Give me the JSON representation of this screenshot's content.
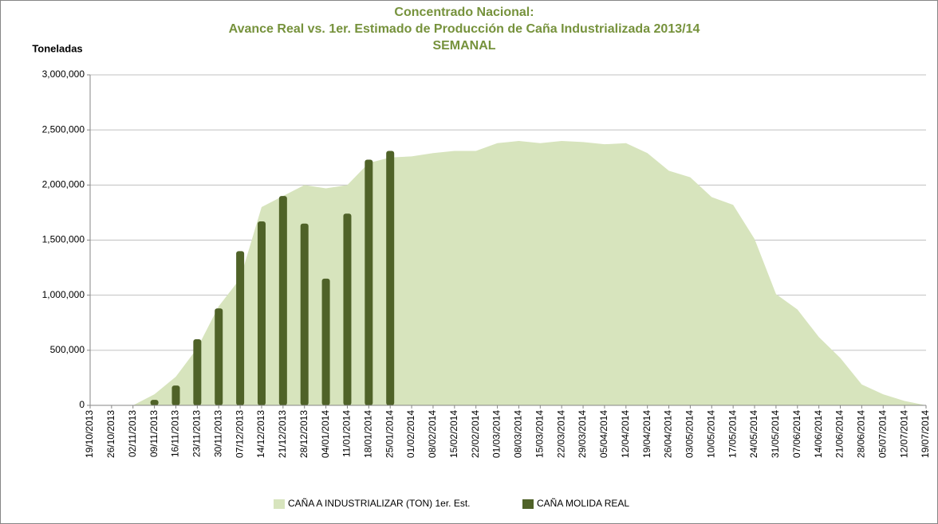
{
  "chart_data": {
    "type": "combo",
    "title": [
      "Concentrado Nacional:",
      "Avance Real vs. 1er. Estimado de Producción de Caña Industrializada 2013/14",
      "SEMANAL"
    ],
    "y_label": "Toneladas",
    "categories": [
      "19/10/2013",
      "26/10/2013",
      "02/11/2013",
      "09/11/2013",
      "16/11/2013",
      "23/11/2013",
      "30/11/2013",
      "07/12/2013",
      "14/12/2013",
      "21/12/2013",
      "28/12/2013",
      "04/01/2014",
      "11/01/2014",
      "18/01/2014",
      "25/01/2014",
      "01/02/2014",
      "08/02/2014",
      "15/02/2014",
      "22/02/2014",
      "01/03/2014",
      "08/03/2014",
      "15/03/2014",
      "22/03/2014",
      "29/03/2014",
      "05/04/2014",
      "12/04/2014",
      "19/04/2014",
      "26/04/2014",
      "03/05/2014",
      "10/05/2014",
      "17/05/2014",
      "24/05/2014",
      "31/05/2014",
      "07/06/2014",
      "14/06/2014",
      "21/06/2014",
      "28/06/2014",
      "05/07/2014",
      "12/07/2014",
      "19/07/2014"
    ],
    "series": [
      {
        "name": "CAÑA A INDUSTRIALIZAR (TON) 1er. Est.",
        "type": "area",
        "color": "#d7e4bd",
        "values": [
          0,
          0,
          0,
          100000,
          260000,
          520000,
          900000,
          1150000,
          1800000,
          1900000,
          2000000,
          1970000,
          2000000,
          2200000,
          2250000,
          2260000,
          2290000,
          2310000,
          2310000,
          2380000,
          2400000,
          2380000,
          2400000,
          2390000,
          2370000,
          2380000,
          2290000,
          2130000,
          2070000,
          1890000,
          1820000,
          1510000,
          1010000,
          870000,
          620000,
          430000,
          190000,
          100000,
          40000,
          0
        ]
      },
      {
        "name": "CAÑA MOLIDA REAL",
        "type": "bar",
        "color": "#4f6228",
        "values": [
          null,
          null,
          null,
          50000,
          180000,
          600000,
          880000,
          1400000,
          1670000,
          1900000,
          1650000,
          1150000,
          1740000,
          2230000,
          2310000,
          null,
          null,
          null,
          null,
          null,
          null,
          null,
          null,
          null,
          null,
          null,
          null,
          null,
          null,
          null,
          null,
          null,
          null,
          null,
          null,
          null,
          null,
          null,
          null,
          null
        ]
      }
    ],
    "ylim": [
      0,
      3000000
    ],
    "yticks": [
      0,
      {
        "value": 500000,
        "label": "500,000"
      },
      {
        "value": 1000000,
        "label": "1,000,000"
      },
      {
        "value": 1500000,
        "label": "1,500,000"
      },
      {
        "value": 2000000,
        "label": "2,000,000"
      },
      {
        "value": 2500000,
        "label": "2,500,000"
      },
      {
        "value": 3000000,
        "label": "3,000,000"
      }
    ],
    "grid": true,
    "legend": "bottom"
  }
}
